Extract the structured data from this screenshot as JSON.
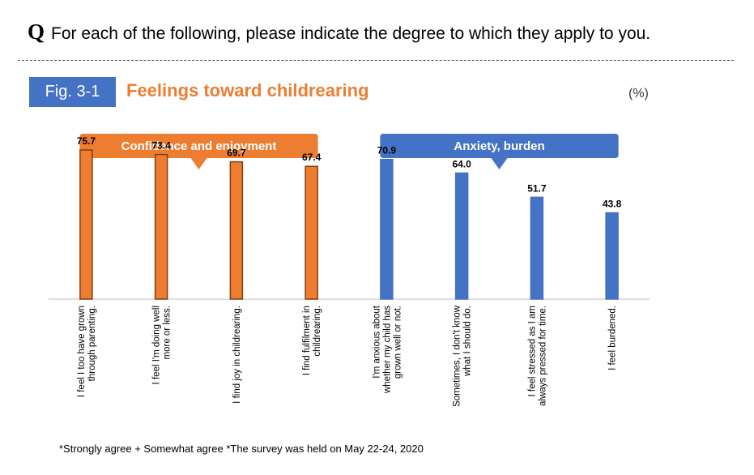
{
  "question": {
    "mark": "Q",
    "text": "For each of the following, please indicate the degree to which they apply to you."
  },
  "figure": {
    "label": "Fig. 3-1",
    "title": "Feelings toward childrearing",
    "unit": "(%)"
  },
  "footnote": "*Strongly agree + Somewhat agree   *The survey was held on May 22-24, 2020",
  "chart_data": {
    "type": "bar",
    "ylim": [
      0,
      100
    ],
    "grid": false,
    "categories": [
      [
        "I feel I too have grown",
        "through parenting."
      ],
      [
        "I feel I'm doing well",
        "more or less."
      ],
      [
        "I find joy in childrearing."
      ],
      [
        "I find fulfilment in",
        "childrearing."
      ],
      [
        "I'm anxious about",
        "whether my child has",
        "grown well or not."
      ],
      [
        "Sometimes, I don't know",
        "what I should do."
      ],
      [
        "I feel stressed as I am",
        "always pressed for time."
      ],
      [
        "I feel burdened."
      ]
    ],
    "values": [
      75.7,
      73.4,
      69.7,
      67.4,
      70.9,
      64.0,
      51.7,
      43.8
    ],
    "value_labels": [
      "75.7",
      "73.4",
      "69.7",
      "67.4",
      "70.9",
      "64.0",
      "51.7",
      "43.8"
    ],
    "groups": [
      {
        "label": "Confidence and enjoyment",
        "color": "#ED7D31",
        "border": "#843C0C",
        "members": [
          0,
          1,
          2,
          3
        ]
      },
      {
        "label": "Anxiety, burden",
        "color": "#4472C4",
        "border": "#4472C4",
        "members": [
          4,
          5,
          6,
          7
        ]
      }
    ]
  }
}
